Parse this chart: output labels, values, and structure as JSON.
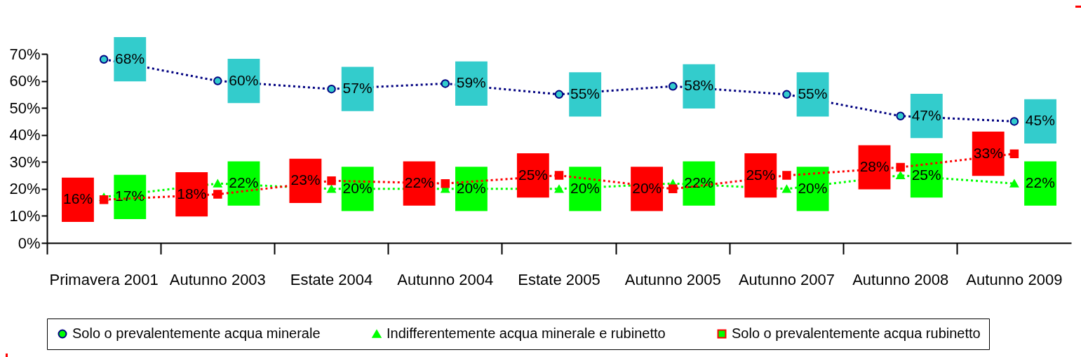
{
  "chart_data": {
    "type": "line",
    "categories": [
      "Primavera 2001",
      "Autunno 2003",
      "Estate 2004",
      "Autunno 2004",
      "Estate 2005",
      "Autunno 2005",
      "Autunno 2007",
      "Autunno 2008",
      "Autunno 2009"
    ],
    "series": [
      {
        "name": "Solo o prevalentemente acqua minerale",
        "color": "#000080",
        "marker": "circle",
        "values": [
          68,
          60,
          57,
          59,
          55,
          58,
          55,
          47,
          45
        ],
        "value_labels": [
          "68%",
          "60%",
          "57%",
          "59%",
          "55%",
          "58%",
          "55%",
          "47%",
          "45%"
        ]
      },
      {
        "name": "Indifferentemente acqua minerale e rubinetto",
        "color": "#00ff00",
        "marker": "triangle",
        "values": [
          17,
          22,
          20,
          20,
          20,
          22,
          20,
          25,
          22
        ],
        "value_labels": [
          "17%",
          "22%",
          "20%",
          "20%",
          "20%",
          "22%",
          "20%",
          "25%",
          "22%"
        ]
      },
      {
        "name": "Solo o prevalentemente acqua rubinetto",
        "color": "#ff0000",
        "marker": "square",
        "values": [
          16,
          18,
          23,
          22,
          25,
          20,
          25,
          28,
          33
        ],
        "value_labels": [
          "16%",
          "18%",
          "23%",
          "22%",
          "25%",
          "20%",
          "25%",
          "28%",
          "33%"
        ]
      }
    ],
    "ylim": [
      0,
      70
    ],
    "yticks": [
      {
        "value": 0,
        "label": "0%"
      },
      {
        "value": 10,
        "label": "10%"
      },
      {
        "value": 20,
        "label": "20%"
      },
      {
        "value": 30,
        "label": "30%"
      },
      {
        "value": 40,
        "label": "40%"
      },
      {
        "value": 50,
        "label": "50%"
      },
      {
        "value": 60,
        "label": "60%"
      },
      {
        "value": 70,
        "label": "70%"
      }
    ],
    "grid": false,
    "legend": "bottom",
    "line_style": "dotted"
  }
}
